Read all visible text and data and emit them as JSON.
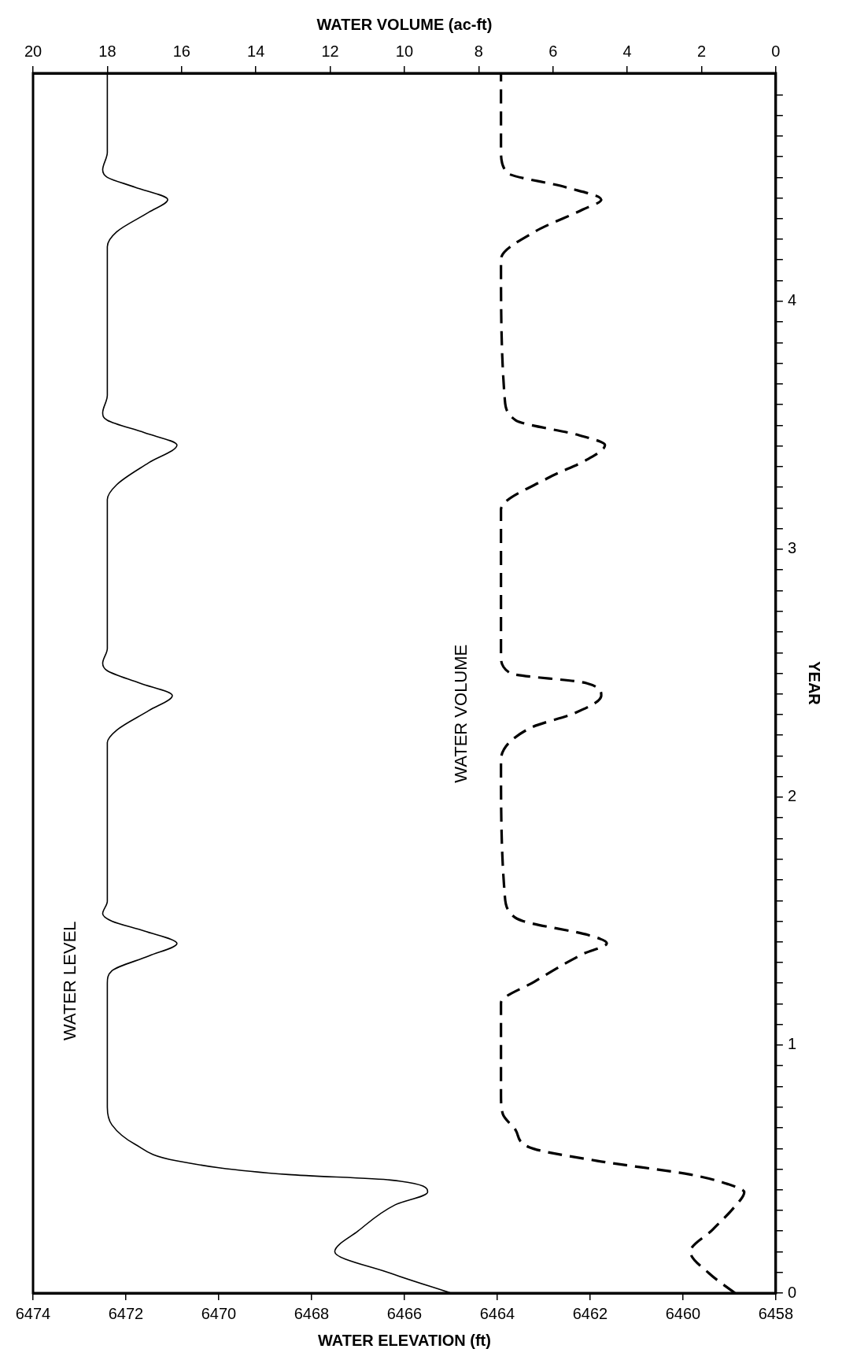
{
  "chart_data": {
    "type": "line",
    "ylabel": "YEAR",
    "xlabel": "WATER ELEVATION (ft)",
    "x2label": "WATER VOLUME (ac-ft)",
    "marker": "none",
    "ylim": [
      0,
      4.92
    ],
    "yticks": [
      0,
      {
        "value": 0.083,
        "label": null
      },
      {
        "value": 0.167,
        "label": null
      },
      {
        "value": 0.25,
        "label": null
      },
      {
        "value": 0.333,
        "label": null
      },
      {
        "value": 0.417,
        "label": null
      },
      {
        "value": 0.5,
        "label": null
      },
      {
        "value": 0.583,
        "label": null
      },
      {
        "value": 0.667,
        "label": null
      },
      {
        "value": 0.75,
        "label": null
      },
      {
        "value": 0.833,
        "label": null
      },
      {
        "value": 0.917,
        "label": null
      },
      1,
      {
        "value": 1.083,
        "label": null
      },
      {
        "value": 1.167,
        "label": null
      },
      {
        "value": 1.25,
        "label": null
      },
      {
        "value": 1.333,
        "label": null
      },
      {
        "value": 1.417,
        "label": null
      },
      {
        "value": 1.5,
        "label": null
      },
      {
        "value": 1.583,
        "label": null
      },
      {
        "value": 1.667,
        "label": null
      },
      {
        "value": 1.75,
        "label": null
      },
      {
        "value": 1.833,
        "label": null
      },
      {
        "value": 1.917,
        "label": null
      },
      2,
      {
        "value": 2.083,
        "label": null
      },
      {
        "value": 2.167,
        "label": null
      },
      {
        "value": 2.25,
        "label": null
      },
      {
        "value": 2.333,
        "label": null
      },
      {
        "value": 2.417,
        "label": null
      },
      {
        "value": 2.5,
        "label": null
      },
      {
        "value": 2.583,
        "label": null
      },
      {
        "value": 2.667,
        "label": null
      },
      {
        "value": 2.75,
        "label": null
      },
      {
        "value": 2.833,
        "label": null
      },
      {
        "value": 2.917,
        "label": null
      },
      3,
      {
        "value": 3.083,
        "label": null
      },
      {
        "value": 3.167,
        "label": null
      },
      {
        "value": 3.25,
        "label": null
      },
      {
        "value": 3.333,
        "label": null
      },
      {
        "value": 3.417,
        "label": null
      },
      {
        "value": 3.5,
        "label": null
      },
      {
        "value": 3.583,
        "label": null
      },
      {
        "value": 3.667,
        "label": null
      },
      {
        "value": 3.75,
        "label": null
      },
      {
        "value": 3.833,
        "label": null
      },
      {
        "value": 3.917,
        "label": null
      },
      4,
      {
        "value": 4.083,
        "label": null
      },
      {
        "value": 4.167,
        "label": null
      },
      {
        "value": 4.25,
        "label": null
      },
      {
        "value": 4.333,
        "label": null
      },
      {
        "value": 4.417,
        "label": null
      },
      {
        "value": 4.5,
        "label": null
      },
      {
        "value": 4.583,
        "label": null
      },
      {
        "value": 4.667,
        "label": null
      },
      {
        "value": 4.75,
        "label": null
      },
      {
        "value": 4.833,
        "label": null
      }
    ],
    "xlim": [
      6474,
      6458
    ],
    "xticks": [
      6474,
      6472,
      6470,
      6468,
      6466,
      6464,
      6462,
      6460,
      6458
    ],
    "x2lim": [
      20,
      0
    ],
    "x2ticks": [
      20,
      18,
      16,
      14,
      12,
      10,
      8,
      6,
      4,
      2,
      0
    ],
    "series": [
      {
        "name": "WATER LEVEL",
        "color": "#000000",
        "line_style": "solid",
        "values": [
          0,
          0.08,
          0.167,
          0.25,
          0.356,
          0.407,
          0.456,
          0.478,
          0.533,
          0.6,
          0.678,
          0.75,
          1.25,
          1.3,
          1.36,
          1.41,
          1.46,
          1.5,
          1.53,
          1.58,
          2.22,
          2.27,
          2.35,
          2.41,
          2.46,
          2.51,
          2.54,
          2.6,
          3.2,
          3.26,
          3.35,
          3.42,
          3.47,
          3.52,
          3.55,
          3.62,
          4.22,
          4.28,
          4.36,
          4.41,
          4.46,
          4.5,
          4.53,
          4.6,
          4.92
        ],
        "x": [
          6465.0,
          6466.3,
          6467.5,
          6467.0,
          6466.2,
          6465.5,
          6466.3,
          6468.5,
          6470.9,
          6471.8,
          6472.3,
          6472.4,
          6472.4,
          6472.3,
          6471.5,
          6470.9,
          6471.6,
          6472.3,
          6472.5,
          6472.4,
          6472.4,
          6472.2,
          6471.5,
          6471.0,
          6471.7,
          6472.4,
          6472.5,
          6472.4,
          6472.4,
          6472.2,
          6471.5,
          6470.9,
          6471.6,
          6472.4,
          6472.5,
          6472.4,
          6472.4,
          6472.2,
          6471.5,
          6471.1,
          6471.8,
          6472.4,
          6472.5,
          6472.4,
          6472.4
        ]
      },
      {
        "name": "WATER VOLUME",
        "color": "#000000",
        "line_style": "dashed",
        "axis": "x2",
        "values": [
          0,
          0.08,
          0.167,
          0.256,
          0.35,
          0.407,
          0.44,
          0.478,
          0.533,
          0.589,
          0.656,
          0.722,
          0.8,
          1.17,
          1.256,
          1.367,
          1.411,
          1.444,
          1.5,
          1.533,
          1.61,
          2.15,
          2.28,
          2.34,
          2.41,
          2.46,
          2.5,
          2.57,
          3.16,
          3.29,
          3.36,
          3.42,
          3.46,
          3.52,
          3.61,
          4.17,
          4.28,
          4.37,
          4.41,
          4.46,
          4.52,
          4.61,
          4.92
        ],
        "x": [
          1.1,
          1.8,
          2.3,
          1.7,
          1.1,
          0.85,
          1.3,
          2.3,
          4.8,
          6.65,
          7.0,
          7.35,
          7.4,
          7.4,
          6.5,
          5.2,
          4.55,
          5.05,
          6.8,
          7.15,
          7.3,
          7.4,
          6.6,
          5.4,
          4.7,
          5.1,
          7.15,
          7.4,
          7.4,
          6.1,
          5.1,
          4.6,
          5.3,
          7.0,
          7.3,
          7.4,
          6.5,
          5.2,
          4.7,
          5.65,
          7.25,
          7.4,
          7.4
        ]
      }
    ]
  }
}
